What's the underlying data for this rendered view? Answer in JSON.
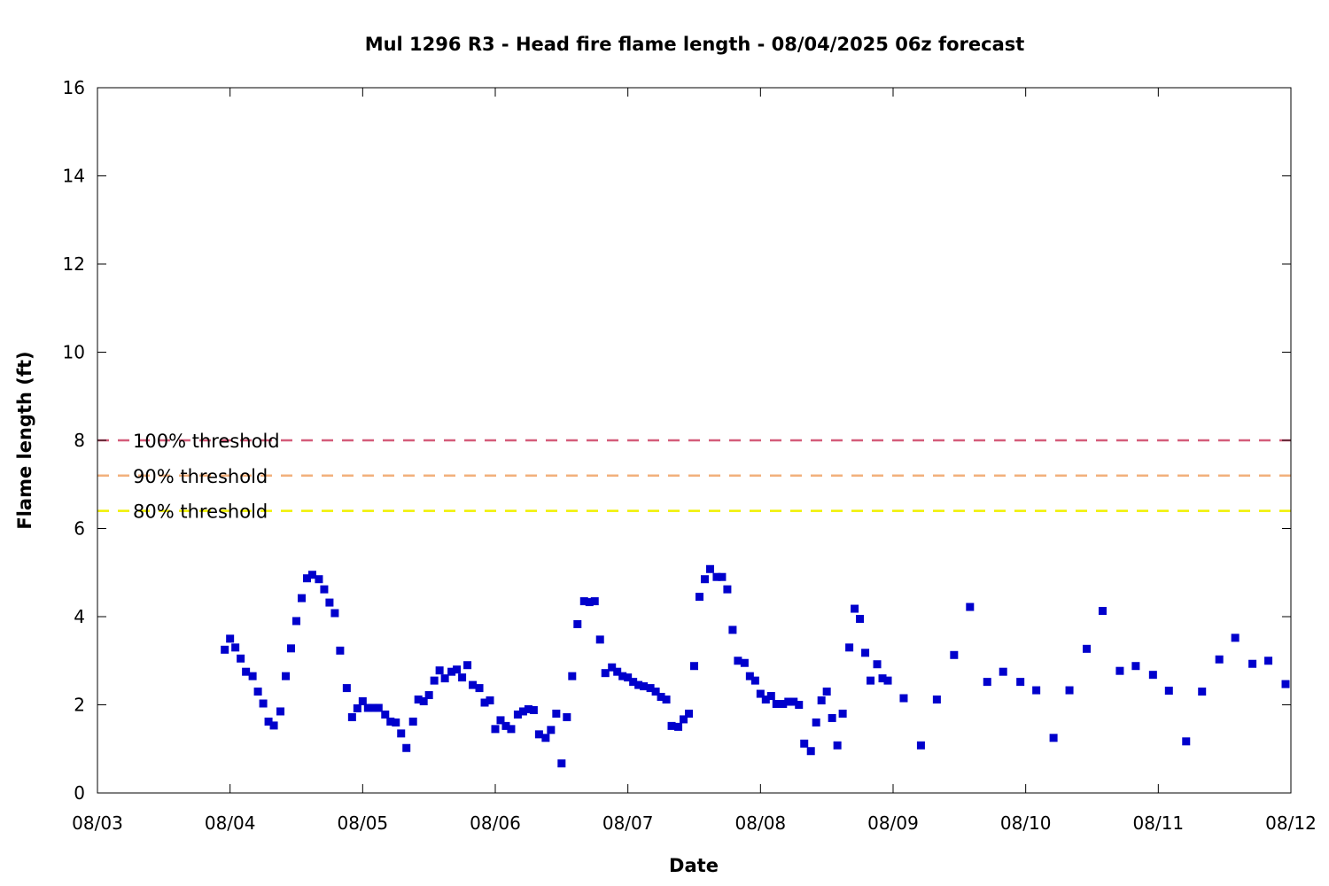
{
  "chart_data": {
    "type": "scatter",
    "title": "Mul 1296 R3 - Head fire flame length - 08/04/2025 06z forecast",
    "xlabel": "Date",
    "ylabel": "Flame length (ft)",
    "ylim": [
      0,
      16
    ],
    "y_ticks": [
      "0",
      "2",
      "4",
      "6",
      "8",
      "10",
      "12",
      "14",
      "16"
    ],
    "x_ticks": [
      "08/03",
      "08/04",
      "08/05",
      "08/06",
      "08/07",
      "08/08",
      "08/09",
      "08/10",
      "08/11",
      "08/12"
    ],
    "xlim_days": [
      0,
      9
    ],
    "grid": false,
    "series": [
      {
        "color": "#0000cc",
        "x": [
          0.96,
          1.0,
          1.04,
          1.08,
          1.12,
          1.17,
          1.21,
          1.25,
          1.29,
          1.33,
          1.38,
          1.42,
          1.46,
          1.5,
          1.54,
          1.58,
          1.62,
          1.67,
          1.71,
          1.75,
          1.79,
          1.83,
          1.88,
          1.92,
          1.96,
          2.0,
          2.04,
          2.08,
          2.12,
          2.17,
          2.21,
          2.25,
          2.29,
          2.33,
          2.38,
          2.42,
          2.46,
          2.5,
          2.54,
          2.58,
          2.62,
          2.67,
          2.71,
          2.75,
          2.79,
          2.83,
          2.88,
          2.92,
          2.96,
          3.0,
          3.04,
          3.08,
          3.12,
          3.17,
          3.21,
          3.25,
          3.29,
          3.33,
          3.38,
          3.42,
          3.46,
          3.5,
          3.54,
          3.58,
          3.62,
          3.67,
          3.71,
          3.75,
          3.79,
          3.83,
          3.88,
          3.92,
          3.96,
          4.0,
          4.04,
          4.08,
          4.12,
          4.17,
          4.21,
          4.25,
          4.29,
          4.33,
          4.38,
          4.42,
          4.46,
          4.5,
          4.54,
          4.58,
          4.62,
          4.67,
          4.71,
          4.75,
          4.79,
          4.83,
          4.88,
          4.92,
          4.96,
          5.0,
          5.04,
          5.08,
          5.12,
          5.17,
          5.21,
          5.25,
          5.29,
          5.33,
          5.38,
          5.42,
          5.46,
          5.5,
          5.54,
          5.58,
          5.62,
          5.67,
          5.71,
          5.75,
          5.79,
          5.83,
          5.88,
          5.92,
          5.96,
          6.08,
          6.21,
          6.33,
          6.46,
          6.58,
          6.71,
          6.83,
          6.96,
          7.08,
          7.21,
          7.33,
          7.46,
          7.58,
          7.71,
          7.83,
          7.96,
          8.08,
          8.21,
          8.33,
          8.46,
          8.58,
          8.71,
          8.83,
          8.96
        ],
        "y": [
          3.25,
          3.5,
          3.3,
          3.05,
          2.75,
          2.65,
          2.3,
          2.03,
          1.62,
          1.53,
          1.85,
          2.65,
          3.28,
          3.9,
          4.42,
          4.87,
          4.95,
          4.85,
          4.62,
          4.32,
          4.08,
          3.23,
          2.38,
          1.72,
          1.92,
          2.08,
          1.93,
          1.93,
          1.93,
          1.78,
          1.62,
          1.6,
          1.35,
          1.02,
          1.62,
          2.12,
          2.08,
          2.22,
          2.55,
          2.78,
          2.6,
          2.75,
          2.8,
          2.62,
          2.9,
          2.45,
          2.38,
          2.05,
          2.1,
          1.45,
          1.65,
          1.52,
          1.45,
          1.78,
          1.85,
          1.9,
          1.88,
          1.33,
          1.25,
          1.43,
          1.8,
          0.67,
          1.72,
          2.65,
          3.83,
          4.35,
          4.33,
          4.35,
          3.48,
          2.72,
          2.85,
          2.75,
          2.65,
          2.62,
          2.52,
          2.45,
          2.42,
          2.38,
          2.3,
          2.18,
          2.12,
          1.52,
          1.5,
          1.67,
          1.8,
          2.88,
          4.45,
          4.85,
          5.08,
          4.9,
          4.9,
          4.62,
          3.7,
          3.0,
          2.95,
          2.65,
          2.55,
          2.25,
          2.12,
          2.2,
          2.02,
          2.02,
          2.07,
          2.07,
          2.0,
          1.12,
          0.95,
          1.6,
          2.1,
          2.3,
          1.7,
          1.08,
          1.8,
          3.3,
          4.18,
          3.95,
          3.18,
          2.55,
          2.92,
          2.6,
          2.55,
          2.15,
          1.08,
          2.12,
          3.13,
          4.22,
          2.52,
          2.75,
          2.52,
          2.33,
          1.25,
          2.33,
          3.27,
          4.13,
          2.77,
          2.88,
          2.68,
          2.32,
          1.17,
          2.3,
          3.03,
          3.52,
          2.93,
          3.0,
          2.47
        ]
      }
    ],
    "thresholds": [
      {
        "label": "100% threshold",
        "value": 8.0,
        "color": "#d45c7a"
      },
      {
        "label": "90% threshold",
        "value": 7.2,
        "color": "#f2b07c"
      },
      {
        "label": "80% threshold",
        "value": 6.4,
        "color": "#f0f000"
      }
    ]
  }
}
